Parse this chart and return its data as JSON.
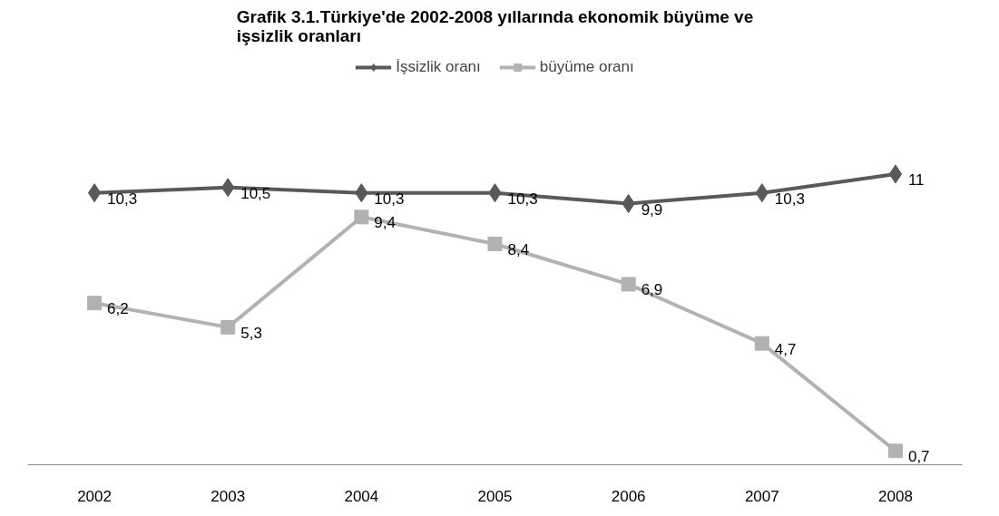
{
  "chart_data": {
    "type": "line",
    "title": "Grafik 3.1.Türkiye'de 2002-2008 yıllarında ekonomik büyüme ve\nişsizlik oranları",
    "categories": [
      "2002",
      "2003",
      "2004",
      "2005",
      "2006",
      "2007",
      "2008"
    ],
    "series": [
      {
        "name": "İşsizlik oranı",
        "color": "#595959",
        "marker": "diamond",
        "values": [
          10.3,
          10.5,
          10.3,
          10.3,
          9.9,
          10.3,
          11
        ],
        "value_labels": [
          "10,3",
          "10,5",
          "10,3",
          "10,3",
          "9,9",
          "10,3",
          "11"
        ]
      },
      {
        "name": "büyüme oranı",
        "color": "#b2b2b2",
        "marker": "square",
        "values": [
          6.2,
          5.3,
          9.4,
          8.4,
          6.9,
          4.7,
          0.7
        ],
        "value_labels": [
          "6,2",
          "5,3",
          "9,4",
          "8,4",
          "6,9",
          "4,7",
          "0,7"
        ]
      }
    ],
    "legend": "top",
    "grid": false,
    "line_style": "solid"
  }
}
